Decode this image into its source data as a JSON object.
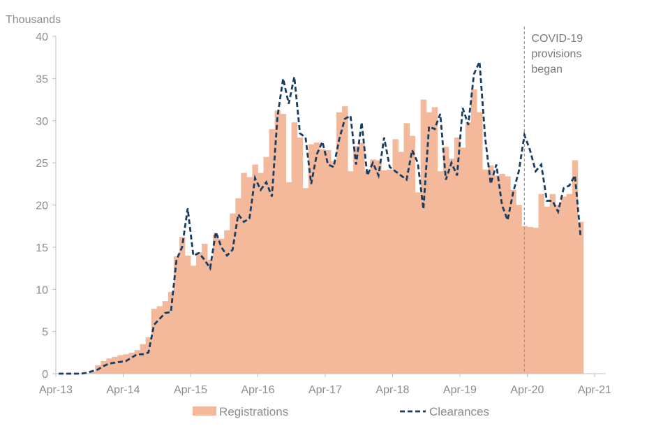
{
  "chart_data": {
    "type": "bar+line",
    "title": "",
    "y_unit_label": "Thousands",
    "ylim": [
      0,
      40
    ],
    "y_ticks": [
      0,
      5,
      10,
      15,
      20,
      25,
      30,
      35,
      40
    ],
    "x_ticks": [
      "Apr-13",
      "Apr-14",
      "Apr-15",
      "Apr-16",
      "Apr-17",
      "Apr-18",
      "Apr-19",
      "Apr-20",
      "Apr-21"
    ],
    "months_start": "Apr-13",
    "annotation": {
      "month_index": 83.5,
      "lines": [
        "COVID-19",
        "provisions",
        "began"
      ]
    },
    "legend": {
      "position": "bottom",
      "registrations_label": "Registrations",
      "clearances_label": "Clearances"
    },
    "colors": {
      "registrations": "#f3b99a",
      "clearances": "#173d63",
      "axis": "#bfbfbf",
      "annotation": "#9a9a9a"
    },
    "series": [
      {
        "name": "Registrations",
        "kind": "bar",
        "values": [
          0,
          0,
          0,
          0,
          0,
          0,
          0.2,
          1.0,
          1.5,
          1.8,
          2.0,
          2.2,
          2.3,
          2.5,
          2.8,
          3.5,
          4.3,
          7.7,
          8.0,
          8.6,
          9.7,
          13.9,
          16.2,
          14.0,
          12.8,
          14.4,
          15.4,
          13.5,
          16.5,
          16.0,
          17.0,
          19.0,
          20.8,
          23.8,
          23.3,
          24.8,
          23.8,
          25.7,
          29.0,
          31.2,
          30.8,
          22.7,
          29.8,
          28.0,
          22.0,
          27.2,
          27.4,
          26.6,
          26.5,
          25.2,
          31.0,
          31.7,
          24.0,
          27.0,
          27.4,
          24.0,
          25.4,
          25.3,
          24.1,
          24.2,
          27.8,
          26.3,
          29.7,
          28.2,
          21.5,
          32.5,
          31.0,
          31.6,
          24.0,
          26.9,
          25.5,
          28.0,
          26.8,
          29.8,
          33.7,
          31.0,
          24.2,
          24.7,
          23.5,
          23.7,
          23.4,
          21.8,
          20.0,
          17.5,
          17.4,
          17.3,
          21.3,
          19.8,
          21.3,
          20.0,
          21.0,
          21.3,
          25.3,
          18.0
        ],
        "total_months": 98
      },
      {
        "name": "Clearances",
        "kind": "line",
        "values": [
          0,
          0,
          0,
          0,
          0,
          0.1,
          0.3,
          0.5,
          0.9,
          1.2,
          1.3,
          1.4,
          1.5,
          1.9,
          2.3,
          2.3,
          2.5,
          5.8,
          6.5,
          7.2,
          7.3,
          13.5,
          15.0,
          19.6,
          14.0,
          14.3,
          13.5,
          12.5,
          16.8,
          15.0,
          14.0,
          14.7,
          18.9,
          18.0,
          18.4,
          23.2,
          21.8,
          22.7,
          21.0,
          30.5,
          35.0,
          32.0,
          35.2,
          28.5,
          28.0,
          22.5,
          26.0,
          27.5,
          24.8,
          24.5,
          27.8,
          30.2,
          30.6,
          24.8,
          29.8,
          23.5,
          25.0,
          23.5,
          28.0,
          24.5,
          24.0,
          23.5,
          23.0,
          26.5,
          25.0,
          19.5,
          29.3,
          29.0,
          30.8,
          23.0,
          25.0,
          23.5,
          31.5,
          29.5,
          35.5,
          37.0,
          28.0,
          22.5,
          24.8,
          20.0,
          18.2,
          21.5,
          24.0,
          28.3,
          26.5,
          24.0,
          24.8,
          20.5,
          20.5,
          19.2,
          22.0,
          22.3,
          23.5,
          16.3
        ],
        "start_index": 0
      }
    ]
  }
}
